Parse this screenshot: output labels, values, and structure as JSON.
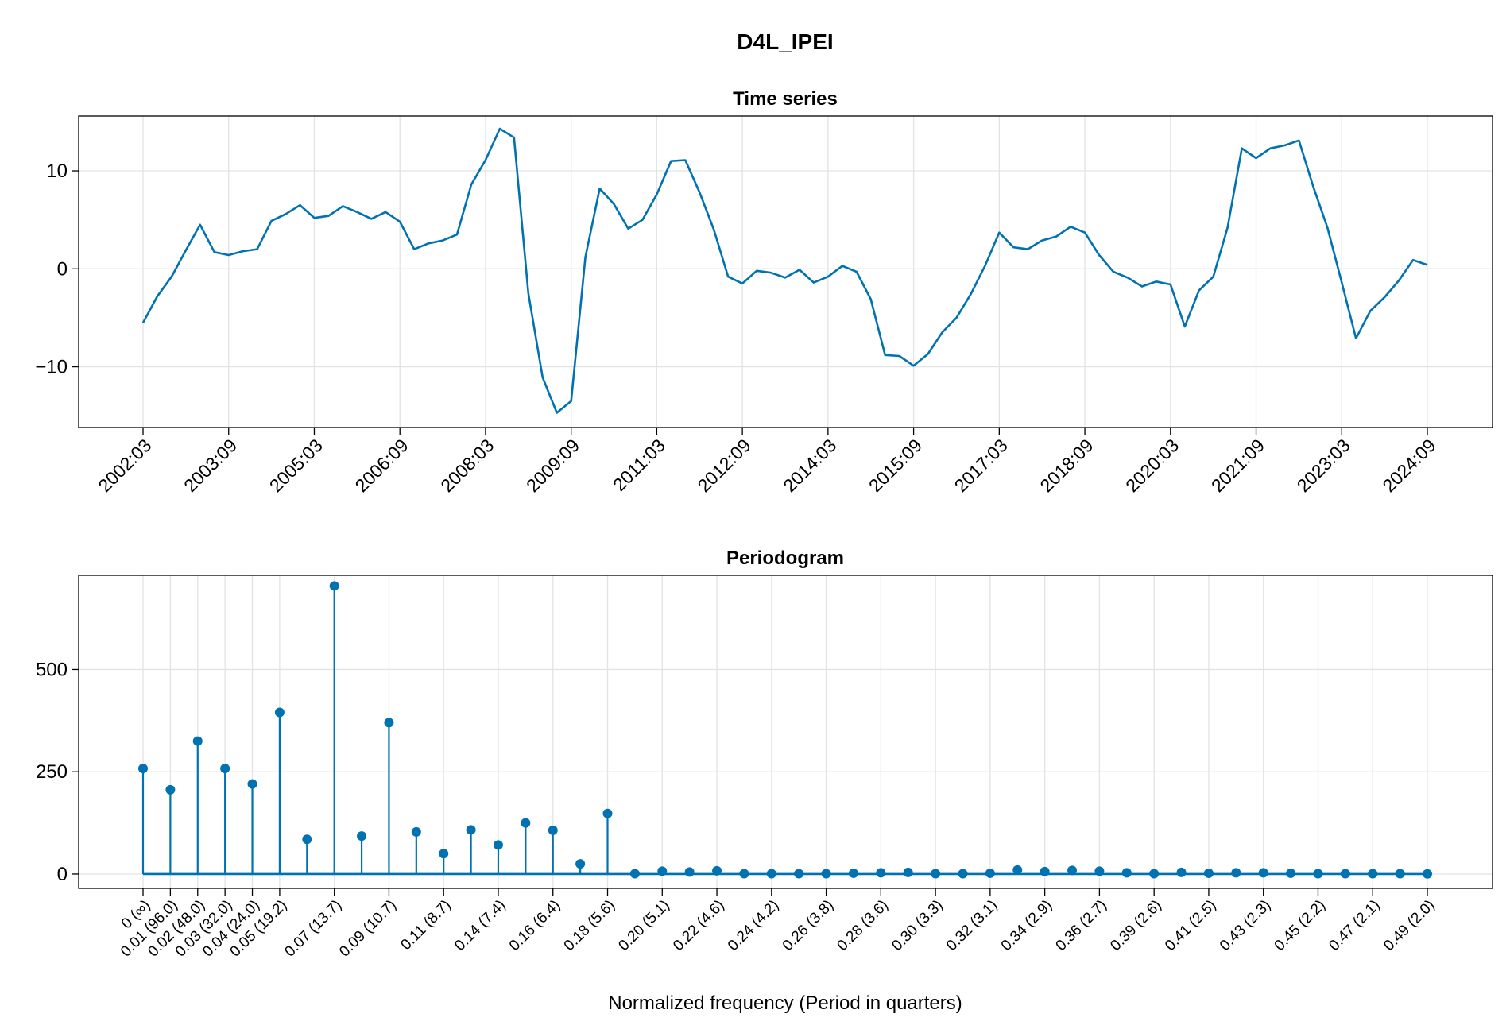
{
  "figure": {
    "title": "D4L_IPEI",
    "line_color": "#0072b2"
  },
  "chart_data": [
    {
      "type": "line",
      "title": "Time series",
      "xlabel": "",
      "ylabel": "",
      "x_ticks": [
        "2002:03",
        "2003:09",
        "2005:03",
        "2006:09",
        "2008:03",
        "2009:09",
        "2011:03",
        "2012:09",
        "2014:03",
        "2015:09",
        "2017:03",
        "2018:09",
        "2020:03",
        "2021:09",
        "2023:03",
        "2024:09"
      ],
      "y_ticks": [
        -10,
        0,
        10
      ],
      "y_tick_labels": [
        "−10",
        "0",
        "10"
      ],
      "ylim": [
        -16.2,
        15.6
      ],
      "grid": true,
      "series": [
        {
          "color": "#0072b2",
          "x": [
            "2002:03",
            "2002:06",
            "2002:09",
            "2002:12",
            "2003:03",
            "2003:06",
            "2003:09",
            "2003:12",
            "2004:03",
            "2004:06",
            "2004:09",
            "2004:12",
            "2005:03",
            "2005:06",
            "2005:09",
            "2005:12",
            "2006:03",
            "2006:06",
            "2006:09",
            "2006:12",
            "2007:03",
            "2007:06",
            "2007:09",
            "2007:12",
            "2008:03",
            "2008:06",
            "2008:09",
            "2008:12",
            "2009:03",
            "2009:06",
            "2009:09",
            "2009:12",
            "2010:03",
            "2010:06",
            "2010:09",
            "2010:12",
            "2011:03",
            "2011:06",
            "2011:09",
            "2011:12",
            "2012:03",
            "2012:06",
            "2012:09",
            "2012:12",
            "2013:03",
            "2013:06",
            "2013:09",
            "2013:12",
            "2014:03",
            "2014:06",
            "2014:09",
            "2014:12",
            "2015:03",
            "2015:06",
            "2015:09",
            "2015:12",
            "2016:03",
            "2016:06",
            "2016:09",
            "2016:12",
            "2017:03",
            "2017:06",
            "2017:09",
            "2017:12",
            "2018:03",
            "2018:06",
            "2018:09",
            "2018:12",
            "2019:03",
            "2019:06",
            "2019:09",
            "2019:12",
            "2020:03",
            "2020:06",
            "2020:09",
            "2020:12",
            "2021:03",
            "2021:06",
            "2021:09",
            "2021:12",
            "2022:03",
            "2022:06",
            "2022:09",
            "2022:12",
            "2023:03",
            "2023:06",
            "2023:09",
            "2023:12",
            "2024:03",
            "2024:06",
            "2024:09"
          ],
          "values": [
            -5.5,
            -2.8,
            -0.8,
            1.9,
            4.5,
            1.7,
            1.4,
            1.8,
            2.0,
            4.9,
            5.6,
            6.5,
            5.2,
            5.4,
            6.4,
            5.8,
            5.1,
            5.8,
            4.8,
            2.0,
            2.6,
            2.9,
            3.5,
            8.6,
            11.1,
            14.3,
            13.4,
            -2.5,
            -11.1,
            -14.7,
            -13.5,
            1.2,
            8.2,
            6.6,
            4.1,
            5.0,
            7.6,
            11.0,
            11.1,
            7.8,
            4.0,
            -0.8,
            -1.5,
            -0.2,
            -0.4,
            -0.9,
            -0.1,
            -1.4,
            -0.8,
            0.3,
            -0.3,
            -3.1,
            -8.8,
            -8.9,
            -9.9,
            -8.7,
            -6.5,
            -5.0,
            -2.6,
            0.3,
            3.7,
            2.2,
            2.0,
            2.9,
            3.3,
            4.3,
            3.7,
            1.4,
            -0.3,
            -0.9,
            -1.8,
            -1.3,
            -1.6,
            -5.9,
            -2.2,
            -0.8,
            4.2,
            12.3,
            11.3,
            12.3,
            12.6,
            13.1,
            8.4,
            4.2,
            -1.4,
            -7.1,
            -4.3,
            -2.9,
            -1.2,
            0.9,
            0.4
          ]
        }
      ]
    },
    {
      "type": "stem",
      "title": "Periodogram",
      "xlabel": "Normalized frequency (Period in quarters)",
      "ylabel": "",
      "x_tick_labels": [
        "0 (∞)",
        "0.01 (96.0)",
        "0.02 (48.0)",
        "0.03 (32.0)",
        "0.04 (24.0)",
        "0.05 (19.2)",
        "0.07 (13.7)",
        "0.09 (10.7)",
        "0.11 (8.7)",
        "0.14 (7.4)",
        "0.16 (6.4)",
        "0.18 (5.6)",
        "0.20 (5.1)",
        "0.22 (4.6)",
        "0.24 (4.2)",
        "0.26 (3.8)",
        "0.28 (3.6)",
        "0.30 (3.3)",
        "0.32 (3.1)",
        "0.34 (2.9)",
        "0.36 (2.7)",
        "0.39 (2.6)",
        "0.41 (2.5)",
        "0.43 (2.3)",
        "0.45 (2.2)",
        "0.47 (2.1)",
        "0.49 (2.0)"
      ],
      "x_tick_index": [
        0,
        1,
        2,
        3,
        4,
        5,
        7,
        9,
        11,
        13,
        15,
        17,
        19,
        21,
        23,
        25,
        27,
        29,
        31,
        33,
        35,
        37,
        39,
        41,
        43,
        45,
        47
      ],
      "y_ticks": [
        0,
        250,
        500
      ],
      "y_tick_labels": [
        "0",
        "250",
        "500"
      ],
      "ylim": [
        -35,
        730
      ],
      "grid": true,
      "series": [
        {
          "color": "#0072b2",
          "values": [
            258,
            206,
            325,
            258,
            220,
            395,
            85,
            704,
            93,
            370,
            103,
            50,
            108,
            71,
            125,
            107,
            25,
            148,
            1,
            7,
            5,
            8,
            1,
            1,
            1,
            1,
            2,
            3,
            4,
            1,
            1,
            2,
            10,
            6,
            9,
            7,
            3,
            1,
            4,
            2,
            3,
            3,
            2,
            1,
            1,
            1,
            1,
            0.5
          ]
        }
      ]
    }
  ]
}
